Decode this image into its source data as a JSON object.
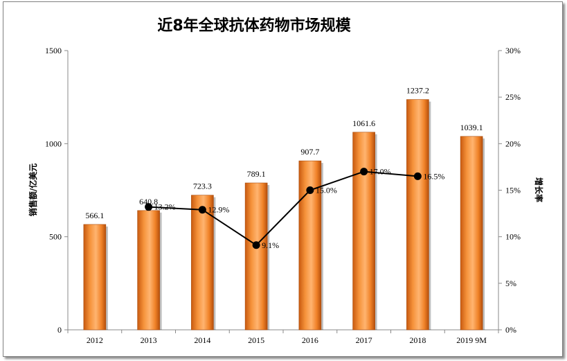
{
  "chart_data": {
    "type": "bar",
    "title": "近8年全球抗体药物市场规模",
    "categories": [
      "2012",
      "2013",
      "2014",
      "2015",
      "2016",
      "2017",
      "2018",
      "2019 9M"
    ],
    "series": [
      {
        "type": "bar",
        "axis": "left",
        "values": [
          566.1,
          640.8,
          723.3,
          789.1,
          907.7,
          1061.6,
          1237.2,
          1039.1
        ],
        "color": "#f28a2e"
      },
      {
        "type": "line",
        "axis": "right",
        "values": [
          null,
          13.2,
          12.9,
          9.1,
          15.0,
          17.0,
          16.5,
          null
        ],
        "color": "#000000"
      }
    ],
    "bar_labels": [
      "566.1",
      "640.8",
      "723.3",
      "789.1",
      "907.7",
      "1061.6",
      "1237.2",
      "1039.1"
    ],
    "line_labels": [
      "",
      "13.2%",
      "12.9%",
      "9.1%",
      "15.0%",
      "17.0%",
      "16.5%",
      ""
    ],
    "ylabel": "销售额/亿美元",
    "y2label": "增长率",
    "ylim": [
      0,
      1500
    ],
    "y2lim": [
      0,
      30
    ],
    "yticks": [
      "0",
      "500",
      "1000",
      "1500"
    ],
    "y2ticks": [
      "0%",
      "5%",
      "10%",
      "15%",
      "20%",
      "25%",
      "30%"
    ],
    "grid": false,
    "legend": "none"
  }
}
